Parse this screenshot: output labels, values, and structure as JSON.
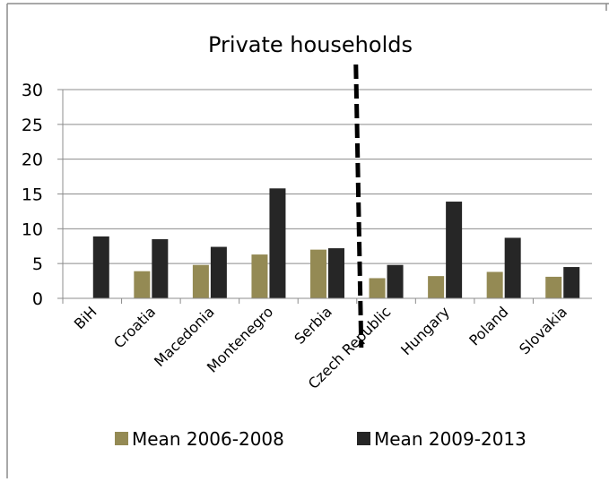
{
  "chart_data": {
    "type": "bar",
    "title": "Private households",
    "categories": [
      "BiH",
      "Croatia",
      "Macedonia",
      "Montenegro",
      "Serbia",
      "Czech Republic",
      "Hungary",
      "Poland",
      "Slovakia"
    ],
    "series": [
      {
        "name": "Mean 2006-2008",
        "color": "#948a54",
        "values": [
          null,
          3.9,
          4.8,
          6.3,
          7.0,
          2.9,
          3.2,
          3.8,
          3.1
        ]
      },
      {
        "name": "Mean 2009-2013",
        "color": "#262626",
        "values": [
          8.9,
          8.5,
          7.4,
          15.8,
          7.2,
          4.8,
          13.9,
          8.7,
          4.5
        ]
      }
    ],
    "ylim": [
      0,
      30
    ],
    "yticks": [
      0,
      5,
      10,
      15,
      20,
      25,
      30
    ],
    "grid": true,
    "legend": "bottom",
    "annotation": "dashed vertical divider between Serbia and Czech Republic"
  }
}
